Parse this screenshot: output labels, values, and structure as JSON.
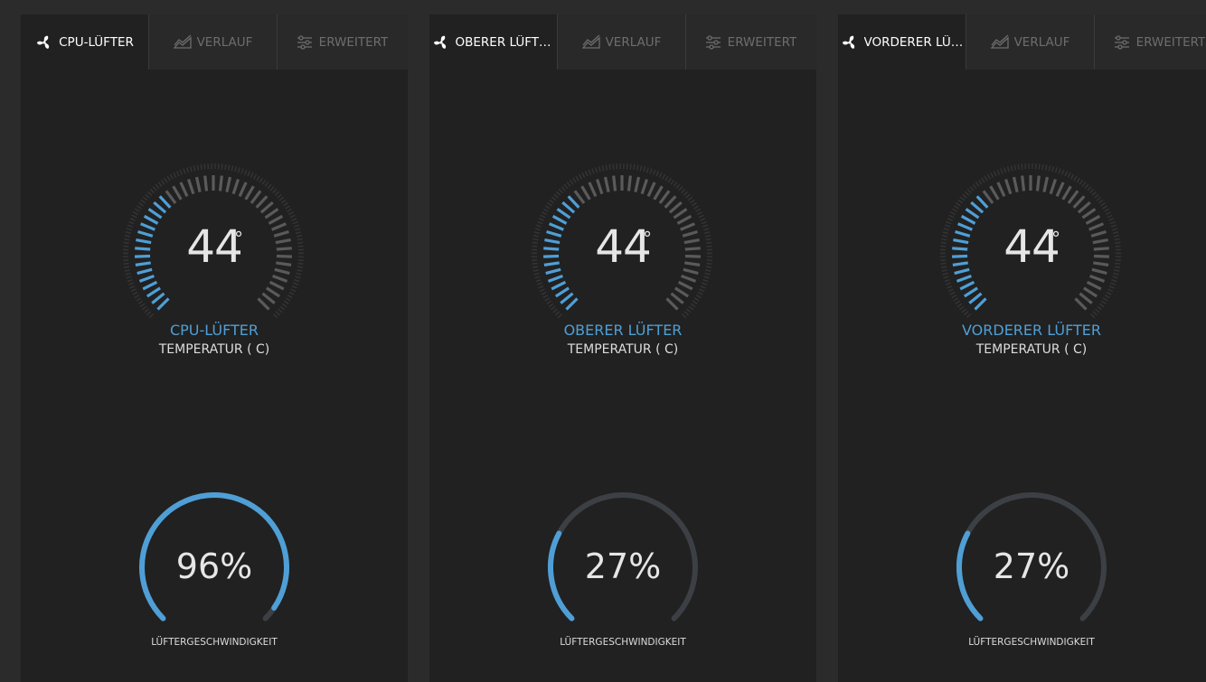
{
  "colors": {
    "accent": "#4f9fd6",
    "inactive": "#6d6d6d",
    "panel": "#212121",
    "tabbar": "#292929",
    "background": "#2b2b2b"
  },
  "panels": [
    {
      "tabs": [
        {
          "label": "CPU-LÜFTER",
          "icon": "fan-icon",
          "active": true
        },
        {
          "label": "VERLAUF",
          "icon": "chart-icon",
          "active": false
        },
        {
          "label": "ERWEITERT",
          "icon": "sliders-icon",
          "active": false
        }
      ],
      "temperature": {
        "value": "44",
        "unit": "°",
        "fraction": 0.36
      },
      "fan_name": "CPU-LÜFTER",
      "temperature_label": "TEMPERATUR ( C)",
      "speed": {
        "value": "96%",
        "fraction": 0.96
      },
      "speed_label": "LÜFTERGESCHWINDIGKEIT"
    },
    {
      "tabs": [
        {
          "label": "OBERER LÜFTER",
          "icon": "fan-icon",
          "active": true
        },
        {
          "label": "VERLAUF",
          "icon": "chart-icon",
          "active": false
        },
        {
          "label": "ERWEITERT",
          "icon": "sliders-icon",
          "active": false
        }
      ],
      "temperature": {
        "value": "44",
        "unit": "°",
        "fraction": 0.36
      },
      "fan_name": "OBERER LÜFTER",
      "temperature_label": "TEMPERATUR ( C)",
      "speed": {
        "value": "27%",
        "fraction": 0.27
      },
      "speed_label": "LÜFTERGESCHWINDIGKEIT"
    },
    {
      "tabs": [
        {
          "label": "VORDERER LÜFTER",
          "icon": "fan-icon",
          "active": true
        },
        {
          "label": "VERLAUF",
          "icon": "chart-icon",
          "active": false
        },
        {
          "label": "ERWEITERT",
          "icon": "sliders-icon",
          "active": false
        }
      ],
      "temperature": {
        "value": "44",
        "unit": "°",
        "fraction": 0.36
      },
      "fan_name": "VORDERER LÜFTER",
      "temperature_label": "TEMPERATUR ( C)",
      "speed": {
        "value": "27%",
        "fraction": 0.27
      },
      "speed_label": "LÜFTERGESCHWINDIGKEIT"
    }
  ]
}
